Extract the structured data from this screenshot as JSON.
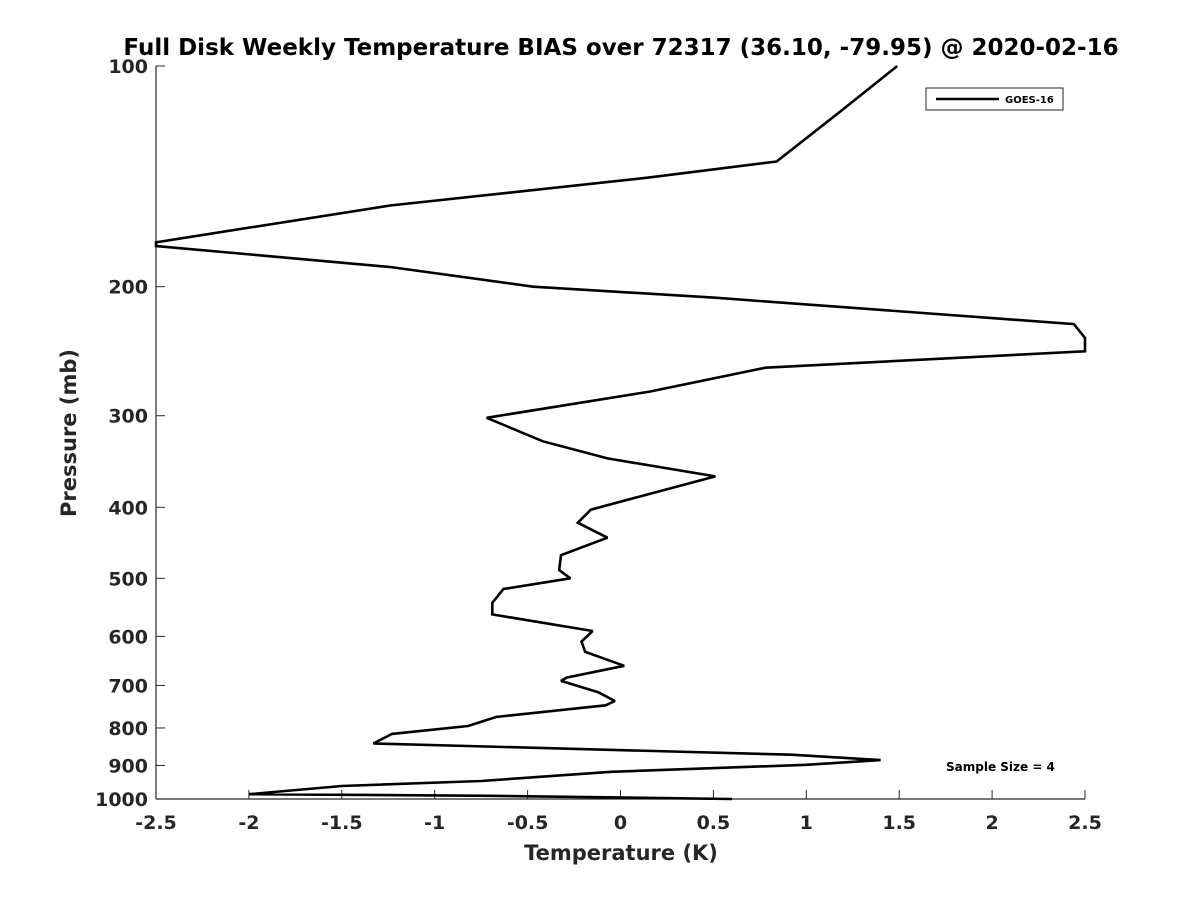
{
  "chart_data": {
    "type": "line",
    "title": "Full Disk Weekly Temperature BIAS over 72317 (36.10, -79.95) @ 2020-02-16",
    "xlabel": "Temperature (K)",
    "ylabel": "Pressure (mb)",
    "xlim": [
      -2.5,
      2.5
    ],
    "ylim": [
      100,
      1000
    ],
    "y_scale": "log",
    "y_reversed": true,
    "x_ticks": [
      "-2.5",
      "-2",
      "-1.5",
      "-1",
      "-0.5",
      "0",
      "0.5",
      "1",
      "1.5",
      "2",
      "2.5"
    ],
    "y_ticks": [
      "100",
      "200",
      "300",
      "400",
      "500",
      "600",
      "700",
      "800",
      "900",
      "1000"
    ],
    "grid": false,
    "legend_position": "top-right",
    "annotation": "Sample Size = 4",
    "series": [
      {
        "name": "GOES-16",
        "color": "#000000",
        "points": [
          {
            "x": 1.49,
            "y": 100
          },
          {
            "x": 1.19,
            "y": 115
          },
          {
            "x": 0.84,
            "y": 135
          },
          {
            "x": 0.15,
            "y": 142
          },
          {
            "x": -1.24,
            "y": 155
          },
          {
            "x": -2.5,
            "y": 174
          },
          {
            "x": -2.5,
            "y": 176
          },
          {
            "x": -1.24,
            "y": 188
          },
          {
            "x": -0.47,
            "y": 200
          },
          {
            "x": 0.5,
            "y": 207
          },
          {
            "x": 2.44,
            "y": 225
          },
          {
            "x": 2.5,
            "y": 235
          },
          {
            "x": 2.5,
            "y": 245
          },
          {
            "x": 0.78,
            "y": 258
          },
          {
            "x": 0.16,
            "y": 278
          },
          {
            "x": -0.72,
            "y": 302
          },
          {
            "x": -0.42,
            "y": 325
          },
          {
            "x": -0.07,
            "y": 343
          },
          {
            "x": 0.51,
            "y": 363
          },
          {
            "x": 0.18,
            "y": 382
          },
          {
            "x": -0.16,
            "y": 403
          },
          {
            "x": -0.23,
            "y": 420
          },
          {
            "x": -0.07,
            "y": 440
          },
          {
            "x": -0.32,
            "y": 465
          },
          {
            "x": -0.33,
            "y": 487
          },
          {
            "x": -0.27,
            "y": 500
          },
          {
            "x": -0.63,
            "y": 517
          },
          {
            "x": -0.69,
            "y": 540
          },
          {
            "x": -0.69,
            "y": 560
          },
          {
            "x": -0.15,
            "y": 590
          },
          {
            "x": -0.21,
            "y": 610
          },
          {
            "x": -0.19,
            "y": 630
          },
          {
            "x": 0.02,
            "y": 658
          },
          {
            "x": -0.29,
            "y": 683
          },
          {
            "x": -0.32,
            "y": 690
          },
          {
            "x": -0.12,
            "y": 715
          },
          {
            "x": -0.03,
            "y": 735
          },
          {
            "x": -0.08,
            "y": 745
          },
          {
            "x": -0.67,
            "y": 773
          },
          {
            "x": -0.82,
            "y": 795
          },
          {
            "x": -1.23,
            "y": 815
          },
          {
            "x": -1.33,
            "y": 840
          },
          {
            "x": 0.92,
            "y": 870
          },
          {
            "x": 1.4,
            "y": 885
          },
          {
            "x": 1.0,
            "y": 898
          },
          {
            "x": -0.05,
            "y": 918
          },
          {
            "x": -0.75,
            "y": 945
          },
          {
            "x": -1.5,
            "y": 960
          },
          {
            "x": -2.0,
            "y": 985
          },
          {
            "x": -0.7,
            "y": 990
          },
          {
            "x": 0.6,
            "y": 1000
          }
        ]
      }
    ]
  }
}
